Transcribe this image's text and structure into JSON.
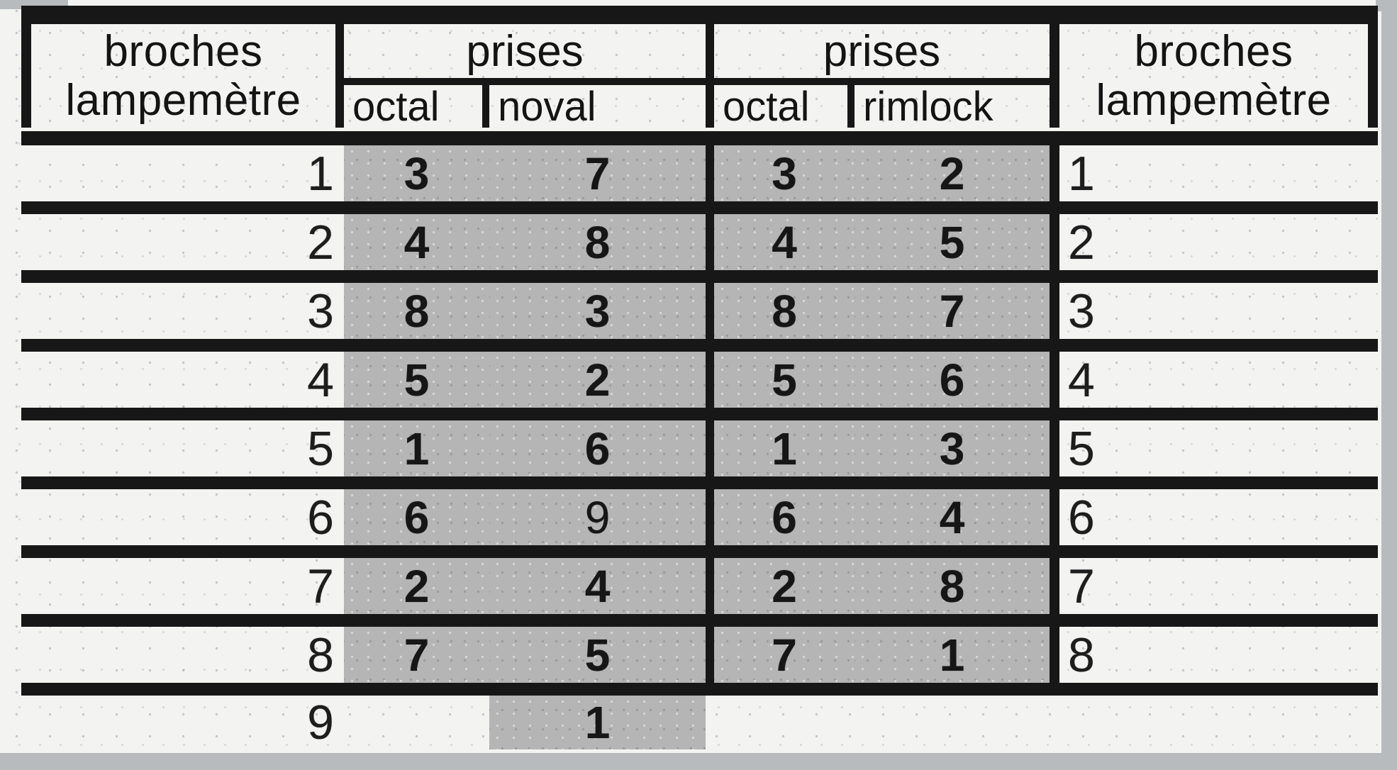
{
  "header": {
    "left_pins_line1": "broches",
    "left_pins_line2": "lampemètre",
    "left_group_title": "prises",
    "left_group_col1": "octal",
    "left_group_col2": "noval",
    "right_group_title": "prises",
    "right_group_col1": "octal",
    "right_group_col2": "rimlock",
    "right_pins_line1": "broches",
    "right_pins_line2": "lampemètre"
  },
  "rows": [
    {
      "pin_left": "1",
      "octal_left": "3",
      "noval": "7",
      "octal_right": "3",
      "rimlock": "2",
      "pin_right": "1"
    },
    {
      "pin_left": "2",
      "octal_left": "4",
      "noval": "8",
      "octal_right": "4",
      "rimlock": "5",
      "pin_right": "2"
    },
    {
      "pin_left": "3",
      "octal_left": "8",
      "noval": "3",
      "octal_right": "8",
      "rimlock": "7",
      "pin_right": "3"
    },
    {
      "pin_left": "4",
      "octal_left": "5",
      "noval": "2",
      "octal_right": "5",
      "rimlock": "6",
      "pin_right": "4"
    },
    {
      "pin_left": "5",
      "octal_left": "1",
      "noval": "6",
      "octal_right": "1",
      "rimlock": "3",
      "pin_right": "5"
    },
    {
      "pin_left": "6",
      "octal_left": "6",
      "noval": "9",
      "octal_right": "6",
      "rimlock": "4",
      "pin_right": "6",
      "noval_light": true
    },
    {
      "pin_left": "7",
      "octal_left": "2",
      "noval": "4",
      "octal_right": "2",
      "rimlock": "8",
      "pin_right": "7"
    },
    {
      "pin_left": "8",
      "octal_left": "7",
      "noval": "5",
      "octal_right": "7",
      "rimlock": "1",
      "pin_right": "8"
    },
    {
      "pin_left": "9",
      "octal_left": "",
      "noval": "1",
      "octal_right": "",
      "rimlock": "",
      "pin_right": ""
    }
  ],
  "colors": {
    "shade": "#b5b5b5",
    "line": "#171717",
    "paper": "#f3f3f2",
    "scan_edge": "#b7bbbe"
  }
}
